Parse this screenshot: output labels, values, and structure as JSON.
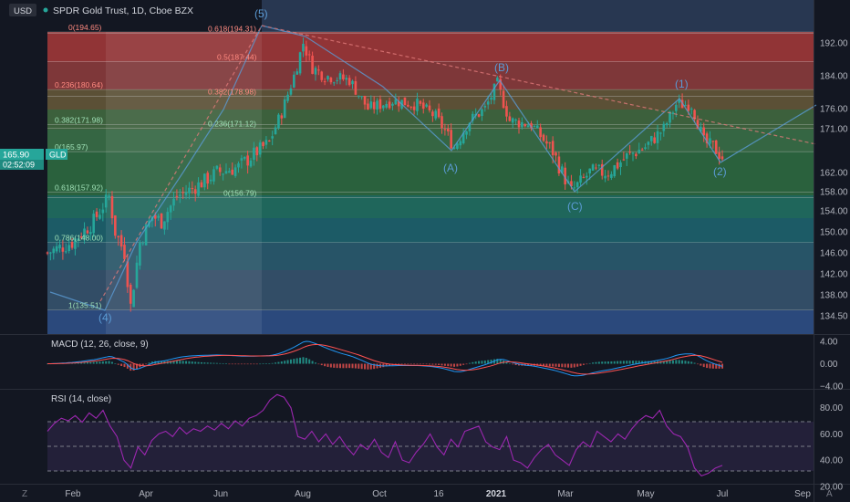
{
  "header": {
    "currency_badge": "USD",
    "title": "SPDR Gold Trust, 1D, Cboe BZX"
  },
  "price_label": {
    "value": "165.90",
    "ticker": "GLD",
    "countdown": "02:52:09"
  },
  "chart_data": [
    {
      "type": "candlestick",
      "title": "SPDR Gold Trust, 1D, Cboe BZX",
      "ylim": [
        132.5,
        196.5
      ],
      "y_ticks": [
        192.0,
        184.0,
        176.0,
        171.0,
        166.0,
        162.0,
        158.0,
        154.0,
        150.0,
        146.0,
        142.0,
        138.0,
        134.5
      ],
      "y_tick_labels": [
        "192.00",
        "184.00",
        "176.00",
        "171.00",
        "",
        "162.00",
        "158.00",
        "154.00",
        "150.00",
        "146.00",
        "142.00",
        "138.00",
        "134.50"
      ],
      "x_tick_labels": [
        "Feb",
        "Apr",
        "Jun",
        "Aug",
        "Oct",
        "16",
        "2021",
        "Mar",
        "May",
        "Jul",
        "Sep"
      ],
      "price_path": [
        [
          0,
          146
        ],
        [
          8,
          148
        ],
        [
          15,
          152
        ],
        [
          20,
          157
        ],
        [
          22,
          150
        ],
        [
          25,
          146
        ],
        [
          27,
          136
        ],
        [
          30,
          148
        ],
        [
          34,
          153
        ],
        [
          37,
          152
        ],
        [
          42,
          157
        ],
        [
          48,
          159
        ],
        [
          55,
          162
        ],
        [
          62,
          163
        ],
        [
          68,
          166
        ],
        [
          72,
          168
        ],
        [
          76,
          175
        ],
        [
          80,
          184
        ],
        [
          83,
          192
        ],
        [
          86,
          186
        ],
        [
          90,
          184
        ],
        [
          98,
          183
        ],
        [
          104,
          176
        ],
        [
          112,
          178
        ],
        [
          120,
          177
        ],
        [
          126,
          174
        ],
        [
          132,
          167
        ],
        [
          137,
          173
        ],
        [
          142,
          176
        ],
        [
          146,
          182
        ],
        [
          150,
          173
        ],
        [
          157,
          172
        ],
        [
          164,
          166
        ],
        [
          170,
          158
        ],
        [
          176,
          162
        ],
        [
          182,
          162
        ],
        [
          188,
          165
        ],
        [
          194,
          167
        ],
        [
          200,
          171
        ],
        [
          204,
          177
        ],
        [
          209,
          177
        ],
        [
          213,
          168
        ],
        [
          216,
          167
        ],
        [
          219,
          165
        ]
      ],
      "fibonacci": {
        "levels": [
          {
            "label": "0(194.65)",
            "price": 194.65
          },
          {
            "label": "0.618(194.31)",
            "price": 194.31
          },
          {
            "label": "0.5(187.44)",
            "price": 187.44
          },
          {
            "label": "0.236(180.64)",
            "price": 180.64
          },
          {
            "label": "0.382(178.98)",
            "price": 178.98
          },
          {
            "label": "0.382(171.98)",
            "price": 171.98
          },
          {
            "label": "0.236(171.12)",
            "price": 171.12
          },
          {
            "label": "0(165.97)",
            "price": 165.97
          },
          {
            "label": "0.618(157.92)",
            "price": 157.92
          },
          {
            "label": "0(156.79)",
            "price": 156.79
          },
          {
            "label": "0.786(148.00)",
            "price": 148.0
          },
          {
            "label": "1(135.51)",
            "price": 135.51
          }
        ]
      },
      "elliott_waves": [
        "(5)",
        "(4)",
        "(A)",
        "(B)",
        "(C)",
        "(1)",
        "(2)"
      ]
    },
    {
      "type": "line",
      "title": "MACD (12, 26, close, 9)",
      "ylim": [
        -4.5,
        5.0
      ],
      "y_tick_labels": [
        "4.00",
        "0.00",
        "−4.00"
      ],
      "series": [
        {
          "name": "MACD",
          "color": "#2196f3"
        },
        {
          "name": "Signal",
          "color": "#ff5252"
        }
      ]
    },
    {
      "type": "line",
      "title": "RSI (14, close)",
      "ylim": [
        22,
        93
      ],
      "y_tick_labels": [
        "80.00",
        "60.00",
        "40.00",
        "20.00"
      ],
      "bands": [
        70,
        50,
        30
      ],
      "series": [
        {
          "name": "RSI",
          "color": "#9c27b0",
          "values": [
            62,
            68,
            72,
            70,
            74,
            69,
            76,
            72,
            78,
            66,
            58,
            40,
            34,
            50,
            44,
            55,
            60,
            62,
            58,
            65,
            60,
            64,
            62,
            66,
            63,
            68,
            64,
            70,
            66,
            72,
            74,
            78,
            86,
            90,
            88,
            80,
            58,
            56,
            62,
            54,
            60,
            52,
            58,
            50,
            44,
            52,
            48,
            56,
            46,
            42,
            54,
            40,
            38,
            46,
            52,
            60,
            50,
            44,
            56,
            50,
            62,
            64,
            66,
            54,
            50,
            48,
            58,
            40,
            38,
            34,
            42,
            48,
            52,
            44,
            40,
            36,
            48,
            54,
            50,
            62,
            58,
            54,
            60,
            56,
            64,
            70,
            74,
            72,
            78,
            66,
            60,
            58,
            50,
            34,
            28,
            30,
            34,
            36
          ]
        }
      ]
    }
  ],
  "colors": {
    "bull": "#26a69a",
    "bear": "#ef5350",
    "background": "#131722",
    "price_tag": "#26a69a"
  },
  "footer": {
    "tz_button": "Z",
    "auto_button": "A"
  }
}
